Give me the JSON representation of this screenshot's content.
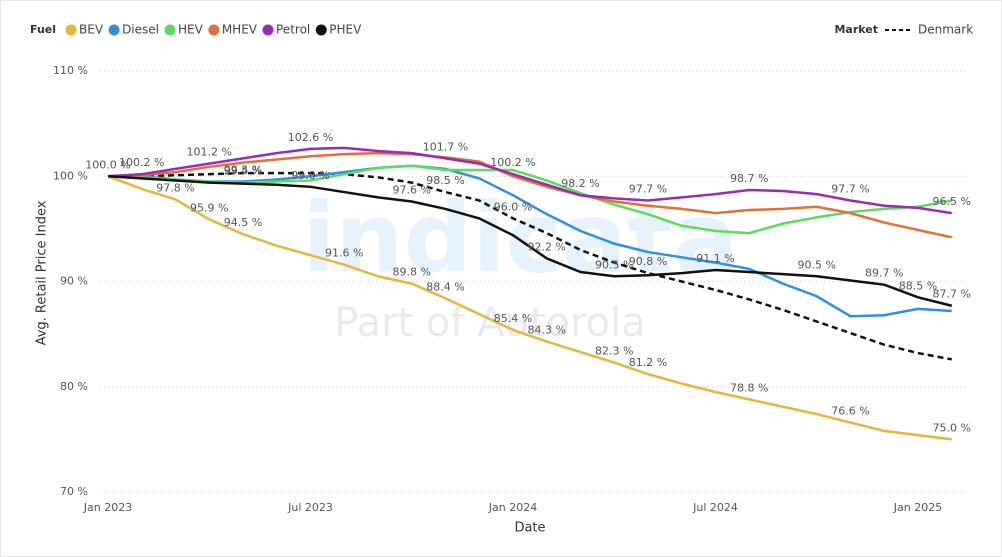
{
  "chart_data": {
    "type": "line",
    "fuel_label": "Fuel",
    "market_label": "Market",
    "y_label": "Avg. Retail Price Index",
    "x_label": "Date",
    "watermark": [
      "indicata",
      "Part of Autorola"
    ],
    "categories": [
      "Jan 2023",
      null,
      null,
      null,
      null,
      null,
      "Jul 2023",
      null,
      null,
      null,
      null,
      null,
      "Jan 2024",
      null,
      null,
      null,
      null,
      null,
      "Jul 2024",
      null,
      null,
      null,
      null,
      null,
      "Jan 2025",
      null
    ],
    "ylim": [
      70,
      112
    ],
    "yticks": [
      {
        "value": 70,
        "label": "70 %"
      },
      {
        "value": 80,
        "label": "80 %"
      },
      {
        "value": 90,
        "label": "90 %"
      },
      {
        "value": 100,
        "label": "100 %"
      },
      {
        "value": 110,
        "label": "110 %"
      }
    ],
    "grid": true,
    "series": [
      {
        "name": "BEV",
        "color": "#e3b73a",
        "values": [
          100,
          98.8,
          97.8,
          95.9,
          94.5,
          93.4,
          92.5,
          91.6,
          90.5,
          89.8,
          88.4,
          86.9,
          85.4,
          84.3,
          83.3,
          82.3,
          81.2,
          80.3,
          79.5,
          78.8,
          78.1,
          77.4,
          76.6,
          75.8,
          75.4,
          75.0
        ],
        "value_labels": [
          "100.0 %",
          null,
          "97.8 %",
          "95.9 %",
          "94.5 %",
          null,
          null,
          "91.6 %",
          null,
          "89.8 %",
          "88.4 %",
          null,
          "85.4 %",
          "84.3 %",
          null,
          "82.3 %",
          "81.2 %",
          null,
          null,
          "78.8 %",
          null,
          null,
          "76.6 %",
          null,
          null,
          "75.0 %"
        ]
      },
      {
        "name": "Diesel",
        "color": "#2f8fe0",
        "values": [
          100,
          100,
          99.7,
          99.5,
          99.5,
          99.7,
          100,
          100.4,
          100.8,
          101,
          100.7,
          99.8,
          98.2,
          96.4,
          94.8,
          93.6,
          92.8,
          92.3,
          91.8,
          91.2,
          89.8,
          88.6,
          86.7,
          86.8,
          87.4,
          87.2
        ],
        "value_labels": [
          null,
          null,
          null,
          null,
          "99.5 %",
          null,
          null,
          null,
          null,
          null,
          null,
          null,
          null,
          null,
          null,
          null,
          null,
          null,
          null,
          null,
          null,
          null,
          null,
          null,
          null,
          null
        ]
      },
      {
        "name": "HEV",
        "color": "#5cdc5c",
        "values": [
          100,
          99.9,
          99.7,
          99.5,
          99.4,
          99.5,
          99.6,
          100.2,
          100.8,
          101,
          100.6,
          100.6,
          100.6,
          99.6,
          98.4,
          97.3,
          96.4,
          95.3,
          94.8,
          94.6,
          95.5,
          96.1,
          96.6,
          96.9,
          97.1,
          97.7
        ],
        "value_labels": [
          null,
          null,
          null,
          null,
          "99.4 %",
          null,
          null,
          null,
          null,
          null,
          null,
          null,
          null,
          null,
          null,
          null,
          null,
          null,
          null,
          null,
          null,
          null,
          null,
          null,
          null,
          null
        ]
      },
      {
        "name": "MHEV",
        "color": "#e07038",
        "values": [
          100,
          100.1,
          100.4,
          100.9,
          101.3,
          101.6,
          101.9,
          102.1,
          102.2,
          102.1,
          101.8,
          101.4,
          100,
          99,
          98.2,
          97.6,
          97.2,
          96.9,
          96.5,
          96.8,
          96.9,
          97.1,
          96.5,
          95.6,
          94.9,
          94.2
        ]
      },
      {
        "name": "Petrol",
        "color": "#9a2bb5",
        "values": [
          100,
          100.2,
          100.7,
          101.2,
          101.7,
          102.2,
          102.6,
          102.7,
          102.4,
          102.2,
          101.7,
          101.2,
          100.2,
          99.2,
          98.2,
          97.9,
          97.7,
          98,
          98.3,
          98.7,
          98.6,
          98.3,
          97.7,
          97.2,
          97,
          96.5
        ],
        "value_labels": [
          null,
          "100.2 %",
          null,
          "101.2 %",
          null,
          null,
          "102.6 %",
          null,
          null,
          null,
          "101.7 %",
          null,
          "100.2 %",
          null,
          "98.2 %",
          null,
          "97.7 %",
          null,
          null,
          "98.7 %",
          null,
          null,
          "97.7 %",
          null,
          null,
          "96.5 %"
        ]
      },
      {
        "name": "PHEV",
        "color": "#111111",
        "values": [
          100,
          99.8,
          99.6,
          99.4,
          99.3,
          99.2,
          99.0,
          98.5,
          98,
          97.6,
          96.9,
          96,
          94.4,
          92.2,
          90.9,
          90.5,
          90.6,
          90.8,
          91.1,
          90.9,
          90.7,
          90.5,
          90.1,
          89.7,
          88.5,
          87.7
        ],
        "value_labels": [
          null,
          null,
          null,
          null,
          null,
          null,
          "99.0 %",
          null,
          null,
          "97.6 %",
          null,
          null,
          null,
          "92.2 %",
          null,
          "90.5 %",
          null,
          null,
          "91.1 %",
          null,
          null,
          "90.5 %",
          null,
          "89.7 %",
          "88.5 %",
          "87.7 %"
        ]
      }
    ],
    "market_series": [
      {
        "name": "Denmark",
        "color": "#111111",
        "line_style": "dashed",
        "values": [
          100,
          100,
          100.1,
          100.2,
          100.3,
          100.3,
          100.3,
          100.2,
          99.9,
          99.4,
          98.5,
          97.7,
          96.0,
          94.6,
          93,
          91.8,
          90.8,
          90,
          89.2,
          88.3,
          87.3,
          86.2,
          85.1,
          84,
          83.2,
          82.6
        ],
        "value_labels": [
          null,
          null,
          null,
          null,
          null,
          null,
          null,
          null,
          null,
          null,
          "98.5 %",
          null,
          "96.0 %",
          null,
          null,
          null,
          "90.8 %",
          null,
          null,
          null,
          null,
          null,
          null,
          null,
          null,
          null
        ]
      }
    ]
  }
}
